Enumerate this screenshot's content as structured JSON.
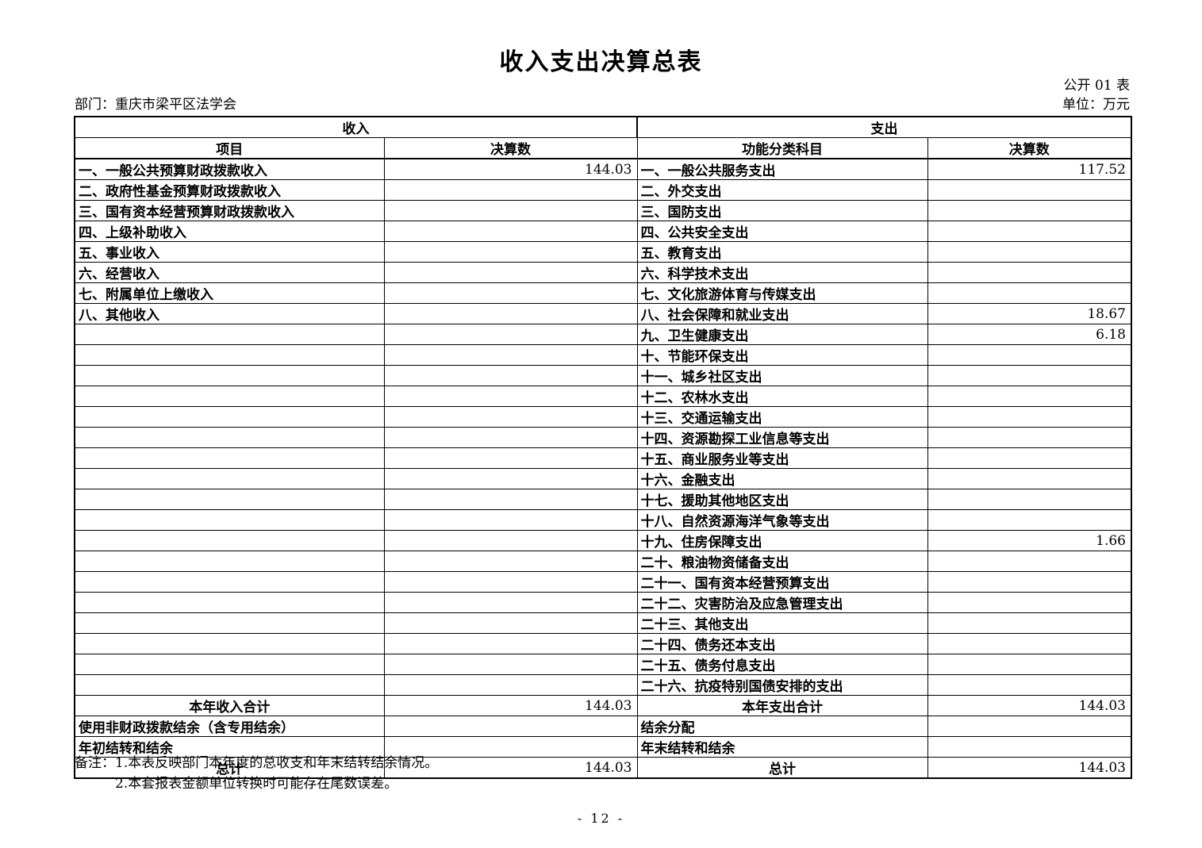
{
  "page": {
    "title": "收入支出决算总表",
    "table_code": "公开 01 表",
    "department": "部门：重庆市梁平区法学会",
    "unit": "单位：万元",
    "page_number": "- 12 -"
  },
  "income": {
    "section_title": "收入",
    "columns": [
      "项目",
      "决算数"
    ],
    "items": [
      {
        "label": "一、一般公共预算财政拨款收入",
        "value": "144.03"
      },
      {
        "label": "二、政府性基金预算财政拨款收入",
        "value": ""
      },
      {
        "label": "三、国有资本经营预算财政拨款收入",
        "value": ""
      },
      {
        "label": "四、上级补助收入",
        "value": ""
      },
      {
        "label": "五、事业收入",
        "value": ""
      },
      {
        "label": "六、经营收入",
        "value": ""
      },
      {
        "label": "七、附属单位上缴收入",
        "value": ""
      },
      {
        "label": "八、其他收入",
        "value": ""
      }
    ],
    "footer": [
      {
        "label": "本年收入合计",
        "value": "144.03",
        "align": "center"
      },
      {
        "label": "使用非财政拨款结余（含专用结余）",
        "value": ""
      },
      {
        "label": "年初结转和结余",
        "value": ""
      },
      {
        "label": "总计",
        "value": "144.03",
        "align": "center"
      }
    ]
  },
  "expense": {
    "section_title": "支出",
    "columns": [
      "功能分类科目",
      "决算数"
    ],
    "items": [
      {
        "label": "一、一般公共服务支出",
        "value": "117.52"
      },
      {
        "label": "二、外交支出",
        "value": ""
      },
      {
        "label": "三、国防支出",
        "value": ""
      },
      {
        "label": "四、公共安全支出",
        "value": ""
      },
      {
        "label": "五、教育支出",
        "value": ""
      },
      {
        "label": "六、科学技术支出",
        "value": ""
      },
      {
        "label": "七、文化旅游体育与传媒支出",
        "value": ""
      },
      {
        "label": "八、社会保障和就业支出",
        "value": "18.67"
      },
      {
        "label": "九、卫生健康支出",
        "value": "6.18"
      },
      {
        "label": "十、节能环保支出",
        "value": ""
      },
      {
        "label": "十一、城乡社区支出",
        "value": ""
      },
      {
        "label": "十二、农林水支出",
        "value": ""
      },
      {
        "label": "十三、交通运输支出",
        "value": ""
      },
      {
        "label": "十四、资源勘探工业信息等支出",
        "value": ""
      },
      {
        "label": "十五、商业服务业等支出",
        "value": ""
      },
      {
        "label": "十六、金融支出",
        "value": ""
      },
      {
        "label": "十七、援助其他地区支出",
        "value": ""
      },
      {
        "label": "十八、自然资源海洋气象等支出",
        "value": ""
      },
      {
        "label": "十九、住房保障支出",
        "value": "1.66"
      },
      {
        "label": "二十、粮油物资储备支出",
        "value": ""
      },
      {
        "label": "二十一、国有资本经营预算支出",
        "value": ""
      },
      {
        "label": "二十二、灾害防治及应急管理支出",
        "value": ""
      },
      {
        "label": "二十三、其他支出",
        "value": ""
      },
      {
        "label": "二十四、债务还本支出",
        "value": ""
      },
      {
        "label": "二十五、债务付息支出",
        "value": ""
      },
      {
        "label": "二十六、抗疫特别国债安排的支出",
        "value": ""
      }
    ],
    "footer": [
      {
        "label": "本年支出合计",
        "value": "144.03",
        "align": "center"
      },
      {
        "label": "结余分配",
        "value": ""
      },
      {
        "label": "年末结转和结余",
        "value": ""
      },
      {
        "label": "总计",
        "value": "144.03",
        "align": "center"
      }
    ]
  },
  "notes": {
    "label": "备注：",
    "lines": [
      "1.本表反映部门本年度的总收支和年末结转结余情况。",
      "2.本套报表金额单位转换时可能存在尾数误差。"
    ]
  },
  "layout": {
    "total_body_rows": 30,
    "text_color": "#000000",
    "background_color": "#ffffff"
  }
}
